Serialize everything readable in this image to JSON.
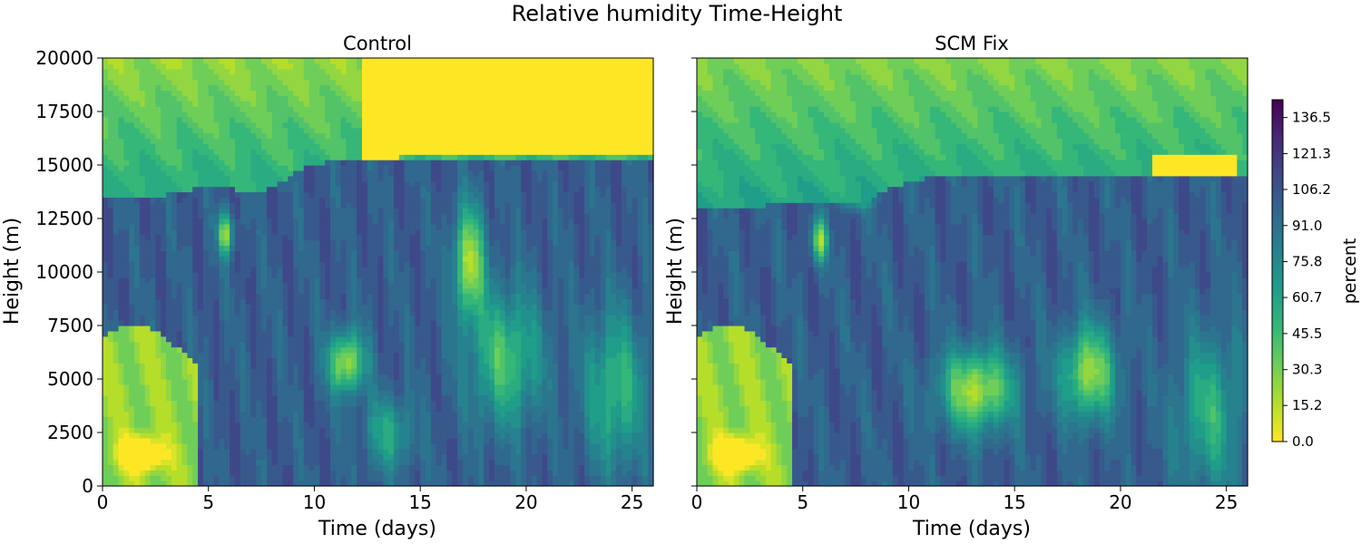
{
  "chart_data": {
    "type": "heatmap",
    "title": "Relative humidity Time-Height",
    "xlabel": "Time (days)",
    "ylabel": "Height (m)",
    "xlim": [
      0,
      26
    ],
    "ylim": [
      0,
      20000
    ],
    "x_ticks": [
      0,
      5,
      10,
      15,
      20,
      25
    ],
    "y_ticks": [
      0,
      2500,
      5000,
      7500,
      10000,
      12500,
      15000,
      17500,
      20000
    ],
    "colorbar": {
      "label": "percent",
      "range": [
        0,
        144
      ],
      "ticks": [
        "0.0",
        "15.2",
        "30.3",
        "45.5",
        "60.7",
        "75.8",
        "91.0",
        "106.2",
        "121.3",
        "136.5"
      ],
      "colormap_stops": [
        "#fde725",
        "#b5de2b",
        "#6ece58",
        "#35b779",
        "#1f9e89",
        "#26828e",
        "#31688e",
        "#3e4989",
        "#482878",
        "#440154"
      ]
    },
    "panels": [
      {
        "title": "Control",
        "description_fields": {
          "upper_levels_percent": [
            30,
            50
          ],
          "cloud_layer_percent": [
            95,
            115
          ],
          "stratosphere_dry_after_day": 14,
          "tropopause_height_m": 15300
        }
      },
      {
        "title": "SCM Fix",
        "description_fields": {
          "upper_levels_percent": [
            30,
            60
          ],
          "cloud_layer_percent": [
            95,
            115
          ],
          "dry_patch_days": [
            21.5,
            25.5
          ],
          "tropopause_height_m": 14500
        }
      }
    ]
  }
}
